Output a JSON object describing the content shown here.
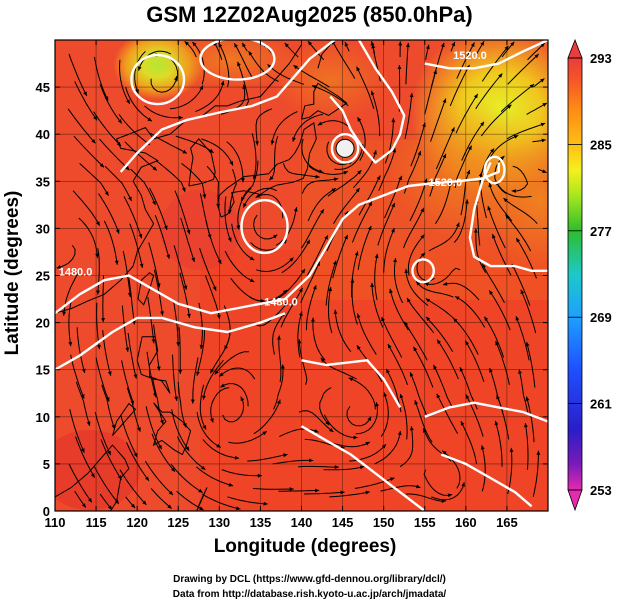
{
  "title": "GSM 12Z02Aug2025 (850.0hPa)",
  "map": {
    "xlabel": "Longitude (degrees)",
    "ylabel": "Latitude  (degrees)",
    "x_ticks": [
      "110",
      "115",
      "120",
      "125",
      "130",
      "135",
      "140",
      "145",
      "150",
      "155",
      "160",
      "165"
    ],
    "y_ticks": [
      "0",
      "5",
      "10",
      "15",
      "20",
      "25",
      "30",
      "35",
      "40",
      "45"
    ],
    "x_range": [
      110,
      170
    ],
    "y_range": [
      0,
      50
    ],
    "contour_labels": [
      {
        "text": "1520.0",
        "lon": 157.5,
        "lat": 34.5
      },
      {
        "text": "1480.0",
        "lon": 137.5,
        "lat": 21.8
      },
      {
        "text": "1480.0",
        "lon": 112.5,
        "lat": 25.0
      },
      {
        "text": "1520.0",
        "lon": 160.5,
        "lat": 48.0
      }
    ]
  },
  "colorbar": {
    "ticks": [
      "293",
      "285",
      "277",
      "269",
      "261",
      "253"
    ],
    "range": [
      253,
      293
    ],
    "colors": [
      "#e62ab0",
      "#4b14c8",
      "#1e3cff",
      "#1e96ff",
      "#1ec8c8",
      "#2dbe2d",
      "#a5e61e",
      "#f5f01e",
      "#ffbe14",
      "#ff8c14",
      "#f55528",
      "#eb3c3c"
    ]
  },
  "credits": {
    "line1": "Drawing by DCL (https://www.gfd-dennou.org/library/dcl/)",
    "line2": "Data from http://database.rish.kyoto-u.ac.jp/arch/jmadata/"
  }
}
